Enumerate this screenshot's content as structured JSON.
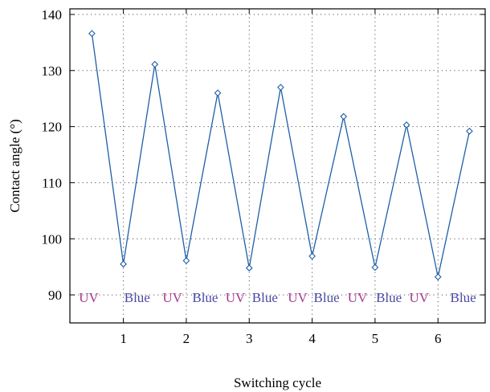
{
  "chart_data": {
    "type": "line",
    "title": "",
    "xlabel": "Switching cycle",
    "ylabel": "Contact angle (°)",
    "xlim": [
      0.15,
      6.75
    ],
    "ylim": [
      85,
      141
    ],
    "xticks": [
      1,
      2,
      3,
      4,
      5,
      6
    ],
    "yticks": [
      90,
      100,
      110,
      120,
      130,
      140
    ],
    "grid": true,
    "grid_style": "dotted",
    "marker": "diamond",
    "series": [
      {
        "color": "#1f5fa8",
        "x": [
          0.5,
          1,
          1.5,
          2,
          2.5,
          3,
          3.5,
          4,
          4.5,
          5,
          5.5,
          6,
          6.5
        ],
        "y": [
          136.6,
          95.5,
          131.1,
          96.1,
          126,
          94.8,
          127,
          96.9,
          121.8,
          94.9,
          120.3,
          93.2,
          119.2
        ]
      }
    ],
    "annotations": [
      {
        "text": "UV",
        "x": 0.45,
        "y": 88.7,
        "color": "#a8388e"
      },
      {
        "text": "Blue",
        "x": 1.22,
        "y": 88.7,
        "color": "#4a4aa6"
      },
      {
        "text": "UV",
        "x": 1.78,
        "y": 88.7,
        "color": "#a8388e"
      },
      {
        "text": "Blue",
        "x": 2.3,
        "y": 88.7,
        "color": "#4a4aa6"
      },
      {
        "text": "UV",
        "x": 2.78,
        "y": 88.7,
        "color": "#a8388e"
      },
      {
        "text": "Blue",
        "x": 3.25,
        "y": 88.7,
        "color": "#4a4aa6"
      },
      {
        "text": "UV",
        "x": 3.77,
        "y": 88.7,
        "color": "#a8388e"
      },
      {
        "text": "Blue",
        "x": 4.23,
        "y": 88.7,
        "color": "#4a4aa6"
      },
      {
        "text": "UV",
        "x": 4.72,
        "y": 88.7,
        "color": "#a8388e"
      },
      {
        "text": "Blue",
        "x": 5.22,
        "y": 88.7,
        "color": "#4a4aa6"
      },
      {
        "text": "UV",
        "x": 5.7,
        "y": 88.7,
        "color": "#a8388e"
      },
      {
        "text": "Blue",
        "x": 6.4,
        "y": 88.7,
        "color": "#4a4aa6"
      }
    ]
  }
}
